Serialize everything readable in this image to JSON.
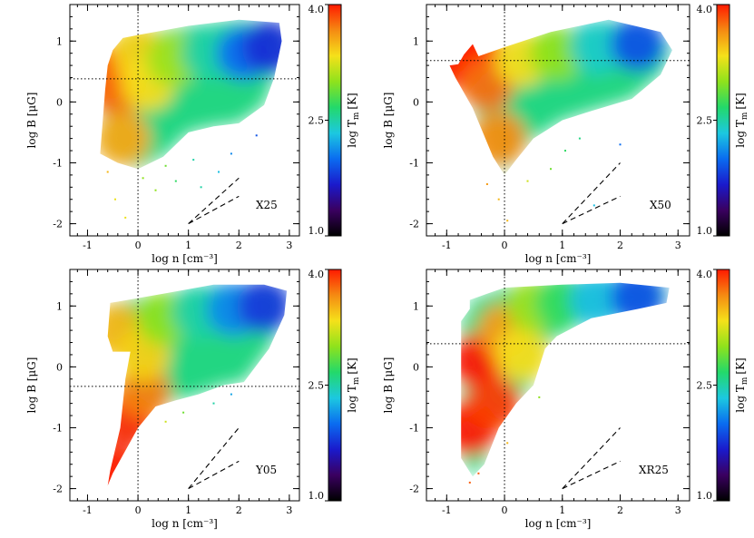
{
  "figure": {
    "colorbar_ticks": [
      "4.0",
      "2.5",
      "1.0"
    ],
    "colorbar_label_main": "log T",
    "colorbar_label_sub": "m",
    "colorbar_label_unit": "[K]",
    "colormap": [
      "#000000",
      "#3a0060",
      "#1a1acc",
      "#0a6cf0",
      "#1cc8e0",
      "#23d96a",
      "#8fe21c",
      "#f5e11a",
      "#f58a12",
      "#ff1a00"
    ]
  },
  "chart_data": [
    {
      "type": "scatter",
      "label": "X25",
      "xlabel": "log n [cm⁻³]",
      "ylabel": "log B [μG]",
      "xlim": [
        -1.35,
        3.2
      ],
      "ylim": [
        -2.2,
        1.6
      ],
      "xticks": [
        "-1",
        "0",
        "1",
        "2",
        "3"
      ],
      "yticks": [
        "-2",
        "-1",
        "0",
        "1"
      ],
      "color_quantity": "log T_m [K]",
      "color_range": [
        1.0,
        4.0
      ],
      "dotted_vline_x": 0,
      "dotted_hline_y": 0.38,
      "reference_slopes": [
        {
          "from": [
            1,
            -2
          ],
          "to": [
            2,
            -1.55
          ]
        },
        {
          "from": [
            1,
            -2
          ],
          "to": [
            2,
            -1.25
          ]
        }
      ],
      "outline": [
        [
          -0.75,
          -0.85
        ],
        [
          -0.65,
          0.2
        ],
        [
          -0.6,
          0.6
        ],
        [
          -0.5,
          0.85
        ],
        [
          -0.3,
          1.05
        ],
        [
          0.0,
          1.1
        ],
        [
          1.0,
          1.25
        ],
        [
          2.0,
          1.35
        ],
        [
          2.8,
          1.3
        ],
        [
          2.85,
          1.0
        ],
        [
          2.7,
          0.4
        ],
        [
          2.5,
          -0.05
        ],
        [
          2.0,
          -0.35
        ],
        [
          1.5,
          -0.4
        ],
        [
          1.0,
          -0.5
        ],
        [
          0.5,
          -0.9
        ],
        [
          0.0,
          -1.1
        ],
        [
          -0.4,
          -1.0
        ]
      ],
      "color_stops": [
        {
          "x": -0.6,
          "y": 0.45,
          "logT": 4.0
        },
        {
          "x": -0.4,
          "y": 0.2,
          "logT": 3.75
        },
        {
          "x": -0.3,
          "y": -0.6,
          "logT": 3.55
        },
        {
          "x": 0.0,
          "y": 0.8,
          "logT": 3.4
        },
        {
          "x": 0.2,
          "y": 0.3,
          "logT": 3.35
        },
        {
          "x": 0.7,
          "y": 0.7,
          "logT": 3.05
        },
        {
          "x": 1.4,
          "y": 0.8,
          "logT": 2.5
        },
        {
          "x": 2.1,
          "y": 0.8,
          "logT": 2.0
        },
        {
          "x": 2.6,
          "y": 0.9,
          "logT": 1.75
        }
      ],
      "scatter_points": [
        [
          -0.45,
          -1.6,
          3.3
        ],
        [
          -0.25,
          -1.9,
          3.3
        ],
        [
          0.1,
          -1.25,
          3.0
        ],
        [
          0.35,
          -1.45,
          3.0
        ],
        [
          0.75,
          -1.3,
          2.7
        ],
        [
          1.1,
          -0.95,
          2.5
        ],
        [
          1.25,
          -1.4,
          2.5
        ],
        [
          1.85,
          -0.85,
          2.1
        ],
        [
          2.35,
          -0.55,
          1.9
        ],
        [
          -0.6,
          -1.15,
          3.5
        ],
        [
          0.55,
          -1.05,
          2.9
        ],
        [
          1.6,
          -1.15,
          2.3
        ]
      ]
    },
    {
      "type": "scatter",
      "label": "X50",
      "xlabel": "log n [cm⁻³]",
      "ylabel": "log B [μG]",
      "xlim": [
        -1.35,
        3.2
      ],
      "ylim": [
        -2.2,
        1.6
      ],
      "xticks": [
        "-1",
        "0",
        "1",
        "2",
        "3"
      ],
      "yticks": [
        "-2",
        "-1",
        "0",
        "1"
      ],
      "color_quantity": "log T_m [K]",
      "color_range": [
        1.0,
        4.0
      ],
      "dotted_vline_x": 0,
      "dotted_hline_y": 0.68,
      "reference_slopes": [
        {
          "from": [
            1,
            -2
          ],
          "to": [
            2,
            -1.55
          ]
        },
        {
          "from": [
            1,
            -2
          ],
          "to": [
            2,
            -1.0
          ]
        }
      ],
      "outline": [
        [
          -0.95,
          0.6
        ],
        [
          -0.8,
          0.62
        ],
        [
          -0.7,
          0.78
        ],
        [
          -0.55,
          0.95
        ],
        [
          -0.45,
          0.75
        ],
        [
          0.0,
          0.9
        ],
        [
          0.8,
          1.15
        ],
        [
          1.8,
          1.35
        ],
        [
          2.7,
          1.15
        ],
        [
          2.9,
          0.85
        ],
        [
          2.7,
          0.45
        ],
        [
          2.2,
          0.05
        ],
        [
          1.5,
          -0.15
        ],
        [
          1.0,
          -0.3
        ],
        [
          0.5,
          -0.6
        ],
        [
          0.2,
          -0.95
        ],
        [
          0.0,
          -1.2
        ],
        [
          -0.2,
          -0.9
        ],
        [
          -0.55,
          -0.1
        ],
        [
          -0.85,
          0.4
        ]
      ],
      "color_stops": [
        {
          "x": -0.8,
          "y": 0.65,
          "logT": 4.0
        },
        {
          "x": -0.55,
          "y": 0.85,
          "logT": 4.0
        },
        {
          "x": -0.3,
          "y": 0.3,
          "logT": 3.75
        },
        {
          "x": -0.1,
          "y": -0.6,
          "logT": 3.65
        },
        {
          "x": 0.3,
          "y": 0.7,
          "logT": 3.35
        },
        {
          "x": 0.9,
          "y": 0.8,
          "logT": 3.0
        },
        {
          "x": 1.6,
          "y": 0.9,
          "logT": 2.4
        },
        {
          "x": 2.3,
          "y": 0.95,
          "logT": 1.9
        }
      ],
      "scatter_points": [
        [
          -0.1,
          -1.6,
          3.5
        ],
        [
          0.05,
          -1.95,
          3.5
        ],
        [
          0.4,
          -1.3,
          3.2
        ],
        [
          0.8,
          -1.1,
          2.9
        ],
        [
          1.3,
          -0.6,
          2.6
        ],
        [
          1.55,
          -1.7,
          2.3
        ],
        [
          2.0,
          -0.7,
          2.0
        ],
        [
          -0.3,
          -1.35,
          3.6
        ],
        [
          1.05,
          -0.8,
          2.7
        ]
      ]
    },
    {
      "type": "scatter",
      "label": "Y05",
      "xlabel": "log n [cm⁻³]",
      "ylabel": "log B [μG]",
      "xlim": [
        -1.35,
        3.2
      ],
      "ylim": [
        -2.2,
        1.6
      ],
      "xticks": [
        "-1",
        "0",
        "1",
        "2",
        "3"
      ],
      "yticks": [
        "-2",
        "-1",
        "0",
        "1"
      ],
      "color_quantity": "log T_m [K]",
      "color_range": [
        1.0,
        4.0
      ],
      "dotted_vline_x": 0,
      "dotted_hline_y": -0.32,
      "reference_slopes": [
        {
          "from": [
            1,
            -2
          ],
          "to": [
            2,
            -1.55
          ]
        },
        {
          "from": [
            1,
            -2
          ],
          "to": [
            2,
            -1.0
          ]
        }
      ],
      "outline": [
        [
          -0.55,
          1.05
        ],
        [
          0.5,
          1.2
        ],
        [
          1.5,
          1.35
        ],
        [
          2.5,
          1.35
        ],
        [
          2.95,
          1.25
        ],
        [
          2.9,
          0.85
        ],
        [
          2.6,
          0.3
        ],
        [
          2.1,
          -0.25
        ],
        [
          1.7,
          -0.3
        ],
        [
          1.2,
          -0.45
        ],
        [
          0.75,
          -0.55
        ],
        [
          0.35,
          -0.65
        ],
        [
          0.0,
          -1.0
        ],
        [
          -0.5,
          -1.75
        ],
        [
          -0.6,
          -1.95
        ],
        [
          -0.55,
          -1.7
        ],
        [
          -0.35,
          -1.0
        ],
        [
          -0.25,
          -0.2
        ],
        [
          -0.15,
          0.25
        ],
        [
          -0.5,
          0.25
        ],
        [
          -0.6,
          0.5
        ]
      ],
      "color_stops": [
        {
          "x": -0.5,
          "y": -1.75,
          "logT": 4.0
        },
        {
          "x": -0.2,
          "y": -0.9,
          "logT": 3.95
        },
        {
          "x": 0.1,
          "y": -0.4,
          "logT": 3.7
        },
        {
          "x": -0.4,
          "y": 0.6,
          "logT": 3.5
        },
        {
          "x": 0.1,
          "y": 0.2,
          "logT": 3.4
        },
        {
          "x": 0.5,
          "y": 0.8,
          "logT": 3.0
        },
        {
          "x": 1.2,
          "y": 0.9,
          "logT": 2.5
        },
        {
          "x": 1.9,
          "y": 0.95,
          "logT": 2.1
        },
        {
          "x": 2.5,
          "y": 1.0,
          "logT": 1.8
        }
      ],
      "scatter_points": [
        [
          0.9,
          -0.75,
          2.9
        ],
        [
          1.5,
          -0.6,
          2.5
        ],
        [
          1.85,
          -0.45,
          2.2
        ],
        [
          0.55,
          -0.9,
          3.2
        ]
      ]
    },
    {
      "type": "scatter",
      "label": "XR25",
      "xlabel": "log n [cm⁻³]",
      "ylabel": "log B [μG]",
      "xlim": [
        -1.35,
        3.2
      ],
      "ylim": [
        -2.2,
        1.6
      ],
      "xticks": [
        "-1",
        "0",
        "1",
        "2",
        "3"
      ],
      "yticks": [
        "-2",
        "-1",
        "0",
        "1"
      ],
      "color_quantity": "log T_m [K]",
      "color_range": [
        1.0,
        4.0
      ],
      "dotted_vline_x": 0,
      "dotted_hline_y": 0.38,
      "reference_slopes": [
        {
          "from": [
            1,
            -2
          ],
          "to": [
            2,
            -1.55
          ]
        },
        {
          "from": [
            1,
            -2
          ],
          "to": [
            2,
            -1.0
          ]
        }
      ],
      "outline": [
        [
          -0.75,
          0.75
        ],
        [
          -0.6,
          0.95
        ],
        [
          -0.6,
          1.1
        ],
        [
          -0.3,
          1.2
        ],
        [
          0.0,
          1.3
        ],
        [
          1.0,
          1.35
        ],
        [
          2.0,
          1.38
        ],
        [
          2.85,
          1.3
        ],
        [
          2.8,
          1.05
        ],
        [
          2.3,
          0.95
        ],
        [
          1.5,
          0.8
        ],
        [
          0.9,
          0.5
        ],
        [
          0.7,
          0.3
        ],
        [
          0.5,
          -0.3
        ],
        [
          0.2,
          -0.6
        ],
        [
          -0.1,
          -1.0
        ],
        [
          -0.35,
          -1.6
        ],
        [
          -0.55,
          -1.8
        ],
        [
          -0.75,
          -1.5
        ]
      ],
      "color_stops": [
        {
          "x": -0.6,
          "y": -1.0,
          "logT": 4.0
        },
        {
          "x": -0.45,
          "y": 0.1,
          "logT": 4.0
        },
        {
          "x": -0.2,
          "y": -0.6,
          "logT": 3.9
        },
        {
          "x": 0.0,
          "y": 0.6,
          "logT": 3.6
        },
        {
          "x": 0.3,
          "y": 0.2,
          "logT": 3.35
        },
        {
          "x": 0.5,
          "y": 1.0,
          "logT": 3.05
        },
        {
          "x": 1.0,
          "y": 1.05,
          "logT": 2.7
        },
        {
          "x": 1.6,
          "y": 1.1,
          "logT": 2.3
        },
        {
          "x": 2.3,
          "y": 1.15,
          "logT": 1.9
        }
      ],
      "scatter_points": [
        [
          -0.6,
          -1.9,
          3.8
        ],
        [
          -0.45,
          -1.75,
          3.8
        ],
        [
          0.05,
          -1.25,
          3.5
        ],
        [
          0.6,
          -0.5,
          3.0
        ]
      ]
    }
  ]
}
